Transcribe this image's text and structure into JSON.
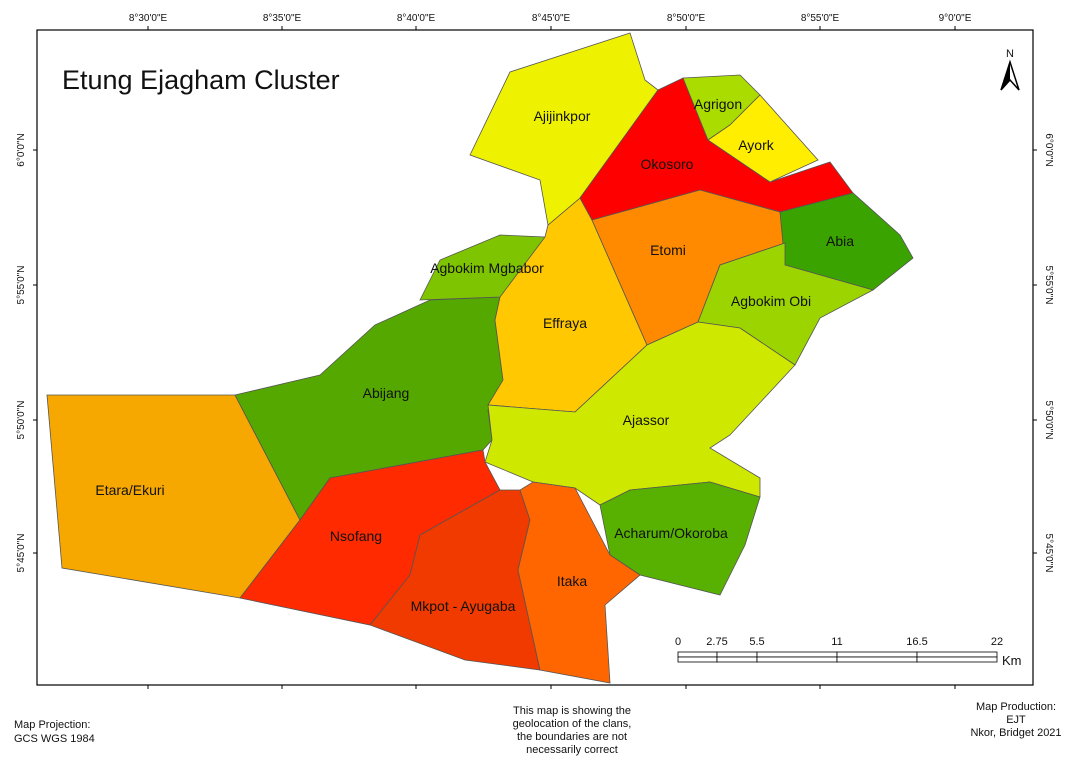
{
  "title": "Etung Ejagham Cluster",
  "longitude_labels": [
    "8°30'0\"E",
    "8°35'0\"E",
    "8°40'0\"E",
    "8°45'0\"E",
    "8°50'0\"E",
    "8°55'0\"E",
    "9°0'0\"E"
  ],
  "latitude_labels": [
    "6°0'0\"N",
    "5°55'0\"N",
    "5°50'0\"N",
    "5°45'0\"N"
  ],
  "regions": [
    {
      "name": "Etara/Ekuri",
      "color": "#f7a800"
    },
    {
      "name": "Abijang",
      "color": "#55a800"
    },
    {
      "name": "Agbokim Mgbabor",
      "color": "#7fc400"
    },
    {
      "name": "Effraya",
      "color": "#ffc800"
    },
    {
      "name": "Ajijinkpor",
      "color": "#eef200"
    },
    {
      "name": "Okosoro",
      "color": "#ff0000"
    },
    {
      "name": "Agrigon",
      "color": "#aadc00"
    },
    {
      "name": "Ayork",
      "color": "#ffee00"
    },
    {
      "name": "Etomi",
      "color": "#ff8a00"
    },
    {
      "name": "Abia",
      "color": "#3aa300"
    },
    {
      "name": "Agbokim Obi",
      "color": "#9cd400"
    },
    {
      "name": "Ajassor",
      "color": "#cfe800"
    },
    {
      "name": "Acharum/Okoroba",
      "color": "#58b000"
    },
    {
      "name": "Nsofang",
      "color": "#ff2a00"
    },
    {
      "name": "Mkpot - Ayugaba",
      "color": "#f03a00"
    },
    {
      "name": "Itaka",
      "color": "#ff6600"
    }
  ],
  "scale_bar": {
    "labels": [
      "0",
      "2.75",
      "5.5",
      "11",
      "16.5",
      "22"
    ],
    "unit": "Km"
  },
  "north_label": "N",
  "projection": {
    "heading": "Map Projection:",
    "value": "GCS WGS 1984"
  },
  "note": [
    "This map is showing the",
    "geolocation of the clans,",
    "the boundaries are not",
    "necessarily correct"
  ],
  "production": [
    "Map Production:",
    "EJT",
    "Nkor, Bridget 2021"
  ]
}
